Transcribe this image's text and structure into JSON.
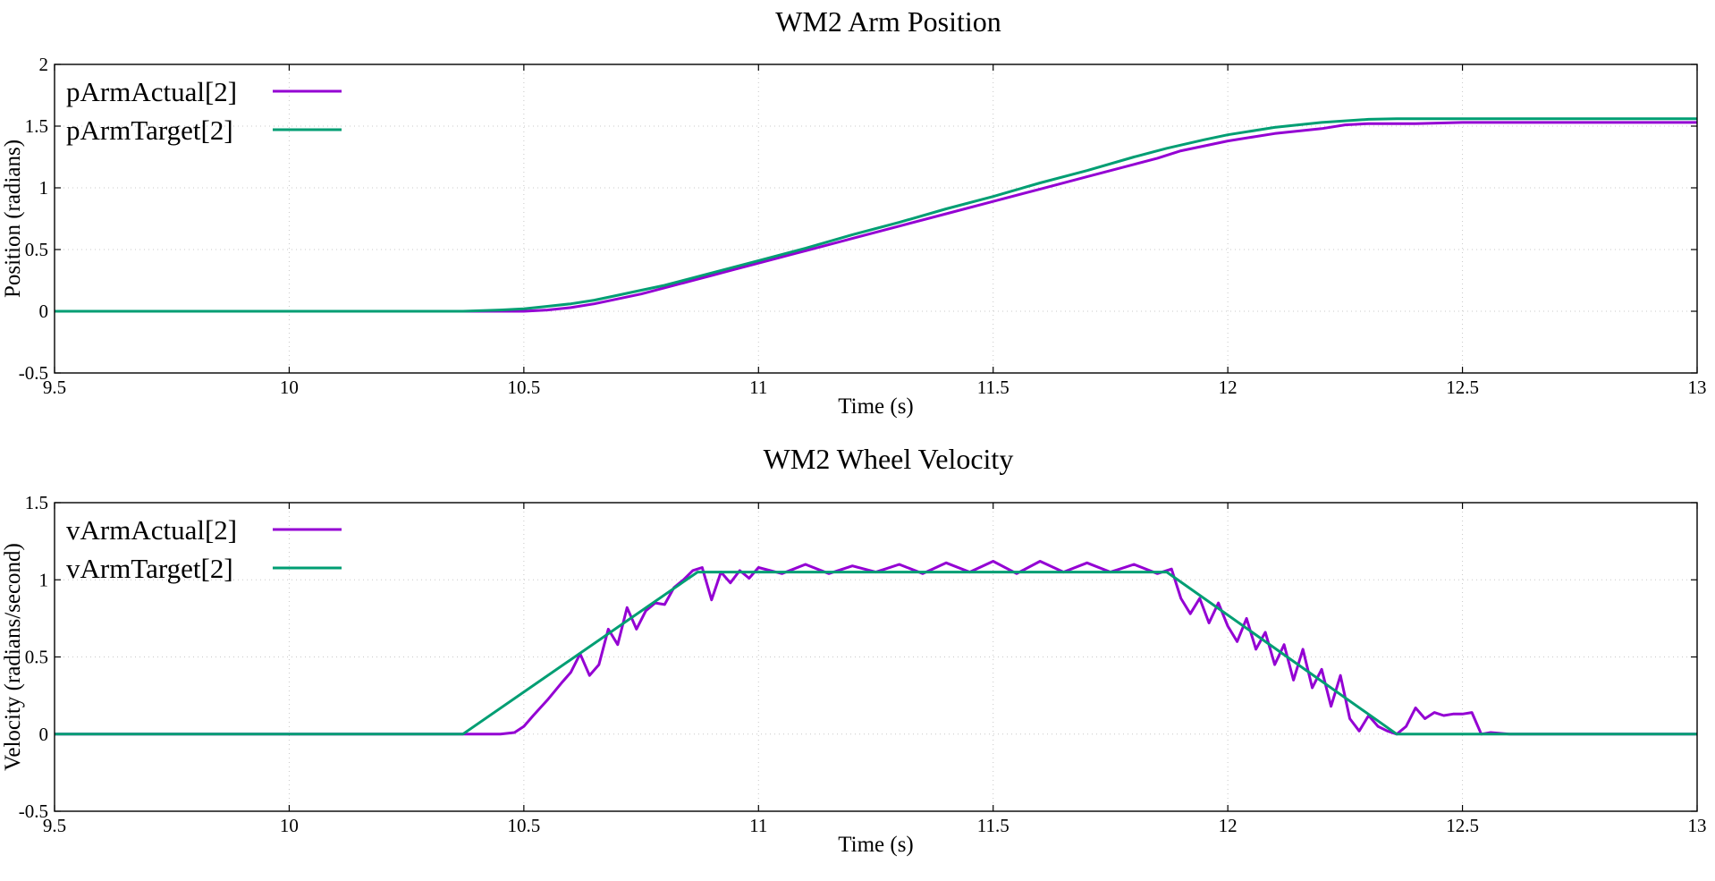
{
  "chart_data": [
    {
      "type": "line",
      "title": "WM2 Arm Position",
      "xlabel": "Time (s)",
      "ylabel": "Position (radians)",
      "xlim": [
        9.5,
        13
      ],
      "ylim": [
        -0.5,
        2
      ],
      "xticks": [
        "9.5",
        "10",
        "10.5",
        "11",
        "11.5",
        "12",
        "12.5",
        "13"
      ],
      "yticks": [
        "-0.5",
        "0",
        "0.5",
        "1",
        "1.5",
        "2"
      ],
      "grid": true,
      "legend_position": "top-left",
      "series": [
        {
          "name": "pArmActual[2]",
          "color": "#9400d3",
          "x": [
            9.5,
            10.0,
            10.45,
            10.5,
            10.55,
            10.6,
            10.65,
            10.7,
            10.75,
            10.8,
            10.85,
            10.9,
            10.95,
            11.0,
            11.1,
            11.2,
            11.3,
            11.4,
            11.5,
            11.6,
            11.7,
            11.8,
            11.85,
            11.9,
            12.0,
            12.1,
            12.2,
            12.25,
            12.3,
            12.4,
            12.5,
            12.6,
            12.7,
            12.8,
            12.9,
            13.0
          ],
          "y": [
            0,
            0,
            0,
            0.0,
            0.01,
            0.03,
            0.06,
            0.1,
            0.14,
            0.19,
            0.24,
            0.29,
            0.34,
            0.39,
            0.49,
            0.59,
            0.69,
            0.79,
            0.89,
            0.99,
            1.09,
            1.19,
            1.24,
            1.3,
            1.38,
            1.44,
            1.48,
            1.51,
            1.52,
            1.52,
            1.53,
            1.53,
            1.53,
            1.53,
            1.53,
            1.53
          ]
        },
        {
          "name": "pArmTarget[2]",
          "color": "#009e73",
          "x": [
            9.5,
            10.0,
            10.37,
            10.45,
            10.5,
            10.55,
            10.6,
            10.65,
            10.7,
            10.75,
            10.8,
            10.85,
            10.9,
            11.0,
            11.1,
            11.2,
            11.3,
            11.4,
            11.5,
            11.6,
            11.7,
            11.8,
            11.87,
            11.95,
            12.0,
            12.1,
            12.2,
            12.3,
            12.36,
            12.5,
            13.0
          ],
          "y": [
            0,
            0,
            0,
            0.01,
            0.02,
            0.04,
            0.06,
            0.09,
            0.13,
            0.17,
            0.21,
            0.26,
            0.31,
            0.41,
            0.51,
            0.62,
            0.72,
            0.83,
            0.93,
            1.04,
            1.14,
            1.25,
            1.32,
            1.39,
            1.43,
            1.49,
            1.53,
            1.555,
            1.56,
            1.56,
            1.56
          ]
        }
      ]
    },
    {
      "type": "line",
      "title": "WM2 Wheel Velocity",
      "xlabel": "Time (s)",
      "ylabel": "Velocity (radians/second)",
      "xlim": [
        9.5,
        13
      ],
      "ylim": [
        -0.5,
        1.5
      ],
      "xticks": [
        "9.5",
        "10",
        "10.5",
        "11",
        "11.5",
        "12",
        "12.5",
        "13"
      ],
      "yticks": [
        "-0.5",
        "0",
        "0.5",
        "1",
        "1.5"
      ],
      "grid": true,
      "legend_position": "top-left",
      "series": [
        {
          "name": "vArmActual[2]",
          "color": "#9400d3",
          "x": [
            9.5,
            10.0,
            10.45,
            10.48,
            10.5,
            10.52,
            10.55,
            10.58,
            10.6,
            10.62,
            10.64,
            10.66,
            10.68,
            10.7,
            10.72,
            10.74,
            10.76,
            10.78,
            10.8,
            10.82,
            10.84,
            10.86,
            10.88,
            10.9,
            10.92,
            10.94,
            10.96,
            10.98,
            11.0,
            11.05,
            11.1,
            11.15,
            11.2,
            11.25,
            11.3,
            11.35,
            11.4,
            11.45,
            11.5,
            11.55,
            11.6,
            11.65,
            11.7,
            11.75,
            11.8,
            11.85,
            11.88,
            11.9,
            11.92,
            11.94,
            11.96,
            11.98,
            12.0,
            12.02,
            12.04,
            12.06,
            12.08,
            12.1,
            12.12,
            12.14,
            12.16,
            12.18,
            12.2,
            12.22,
            12.24,
            12.26,
            12.28,
            12.3,
            12.32,
            12.34,
            12.36,
            12.38,
            12.4,
            12.42,
            12.44,
            12.46,
            12.48,
            12.5,
            12.52,
            12.54,
            12.56,
            12.6,
            12.7,
            12.8,
            12.9,
            13.0
          ],
          "y": [
            0,
            0,
            0,
            0.01,
            0.05,
            0.12,
            0.22,
            0.33,
            0.4,
            0.52,
            0.38,
            0.45,
            0.68,
            0.58,
            0.82,
            0.68,
            0.8,
            0.85,
            0.84,
            0.95,
            1.0,
            1.06,
            1.08,
            0.87,
            1.05,
            0.98,
            1.06,
            1.01,
            1.08,
            1.04,
            1.1,
            1.04,
            1.09,
            1.05,
            1.1,
            1.04,
            1.11,
            1.05,
            1.12,
            1.04,
            1.12,
            1.05,
            1.11,
            1.05,
            1.1,
            1.04,
            1.07,
            0.88,
            0.78,
            0.88,
            0.72,
            0.85,
            0.7,
            0.6,
            0.75,
            0.55,
            0.66,
            0.45,
            0.58,
            0.35,
            0.55,
            0.3,
            0.42,
            0.18,
            0.38,
            0.1,
            0.02,
            0.12,
            0.05,
            0.02,
            0.0,
            0.05,
            0.17,
            0.1,
            0.14,
            0.12,
            0.13,
            0.13,
            0.14,
            0.0,
            0.01,
            0.0,
            0.0,
            0.0,
            0.0,
            0.0
          ]
        },
        {
          "name": "vArmTarget[2]",
          "color": "#009e73",
          "x": [
            9.5,
            10.37,
            10.87,
            11.87,
            12.36,
            13.0
          ],
          "y": [
            0,
            0,
            1.05,
            1.05,
            0,
            0
          ]
        }
      ]
    }
  ]
}
